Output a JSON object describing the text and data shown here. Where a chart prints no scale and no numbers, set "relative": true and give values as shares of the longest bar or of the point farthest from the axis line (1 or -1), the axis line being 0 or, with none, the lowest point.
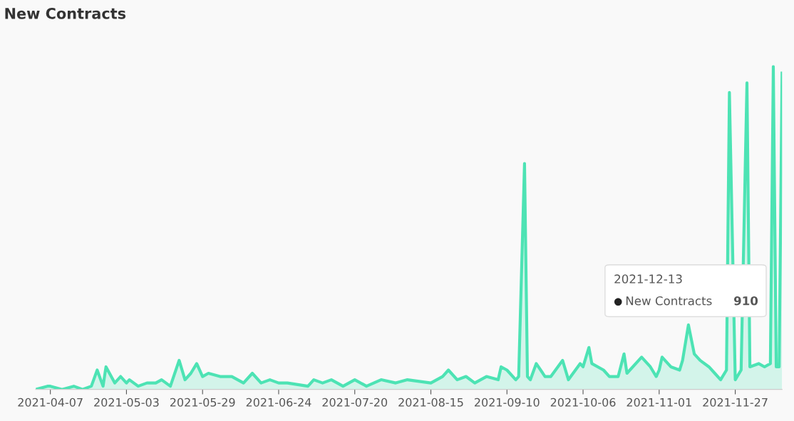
{
  "chart_data": {
    "type": "area",
    "title": "New Contracts",
    "relative": true,
    "xlim": [
      "2021-04-02",
      "2021-12-13"
    ],
    "xticks": [
      "2021-04-07",
      "2021-05-03",
      "2021-05-29",
      "2021-06-24",
      "2021-07-20",
      "2021-08-15",
      "2021-09-10",
      "2021-10-06",
      "2021-11-01",
      "2021-11-27"
    ],
    "legend": false,
    "grid": false,
    "annotations": [
      "2021-12-13",
      "New Contracts",
      "910"
    ],
    "series": [
      {
        "color": "#4de3b4",
        "x": [
          "2021-04-02",
          "2021-04-06",
          "2021-04-07",
          "2021-04-11",
          "2021-04-15",
          "2021-04-18",
          "2021-04-21",
          "2021-04-23",
          "2021-04-25",
          "2021-04-26",
          "2021-04-29",
          "2021-05-01",
          "2021-05-03",
          "2021-05-04",
          "2021-05-07",
          "2021-05-10",
          "2021-05-13",
          "2021-05-15",
          "2021-05-18",
          "2021-05-21",
          "2021-05-23",
          "2021-05-25",
          "2021-05-27",
          "2021-05-29",
          "2021-05-31",
          "2021-06-04",
          "2021-06-08",
          "2021-06-12",
          "2021-06-15",
          "2021-06-18",
          "2021-06-21",
          "2021-06-24",
          "2021-06-27",
          "2021-07-04",
          "2021-07-06",
          "2021-07-09",
          "2021-07-12",
          "2021-07-16",
          "2021-07-20",
          "2021-07-24",
          "2021-07-29",
          "2021-08-03",
          "2021-08-07",
          "2021-08-15",
          "2021-08-19",
          "2021-08-21",
          "2021-08-24",
          "2021-08-27",
          "2021-08-30",
          "2021-09-03",
          "2021-09-07",
          "2021-09-08",
          "2021-09-10",
          "2021-09-13",
          "2021-09-14",
          "2021-09-16",
          "2021-09-17",
          "2021-09-18",
          "2021-09-20",
          "2021-09-23",
          "2021-09-25",
          "2021-09-29",
          "2021-10-01",
          "2021-10-05",
          "2021-10-06",
          "2021-10-08",
          "2021-10-09",
          "2021-10-13",
          "2021-10-15",
          "2021-10-18",
          "2021-10-20",
          "2021-10-21",
          "2021-10-26",
          "2021-10-29",
          "2021-10-31",
          "2021-11-01",
          "2021-11-02",
          "2021-11-05",
          "2021-11-08",
          "2021-11-09",
          "2021-11-11",
          "2021-11-13",
          "2021-11-15",
          "2021-11-18",
          "2021-11-20",
          "2021-11-22",
          "2021-11-24",
          "2021-11-25",
          "2021-11-27",
          "2021-11-29",
          "2021-12-01",
          "2021-12-02",
          "2021-12-05",
          "2021-12-07",
          "2021-12-09",
          "2021-12-10",
          "2021-12-11",
          "2021-12-12",
          "2021-12-13"
        ],
        "values": [
          0.0,
          0.01,
          0.01,
          0.0,
          0.01,
          0.0,
          0.01,
          0.06,
          0.01,
          0.07,
          0.02,
          0.04,
          0.02,
          0.03,
          0.01,
          0.02,
          0.02,
          0.03,
          0.01,
          0.09,
          0.03,
          0.05,
          0.08,
          0.04,
          0.05,
          0.04,
          0.04,
          0.02,
          0.05,
          0.02,
          0.03,
          0.02,
          0.02,
          0.01,
          0.03,
          0.02,
          0.03,
          0.01,
          0.03,
          0.01,
          0.03,
          0.02,
          0.03,
          0.02,
          0.04,
          0.06,
          0.03,
          0.04,
          0.02,
          0.04,
          0.03,
          0.07,
          0.06,
          0.03,
          0.04,
          0.7,
          0.04,
          0.03,
          0.08,
          0.04,
          0.04,
          0.09,
          0.03,
          0.08,
          0.07,
          0.13,
          0.08,
          0.06,
          0.04,
          0.04,
          0.11,
          0.05,
          0.1,
          0.07,
          0.04,
          0.06,
          0.1,
          0.07,
          0.06,
          0.09,
          0.2,
          0.11,
          0.09,
          0.07,
          0.05,
          0.03,
          0.06,
          0.92,
          0.03,
          0.06,
          0.95,
          0.07,
          0.08,
          0.07,
          0.08,
          1,
          0.07,
          0.07,
          0.98
        ]
      }
    ]
  }
}
